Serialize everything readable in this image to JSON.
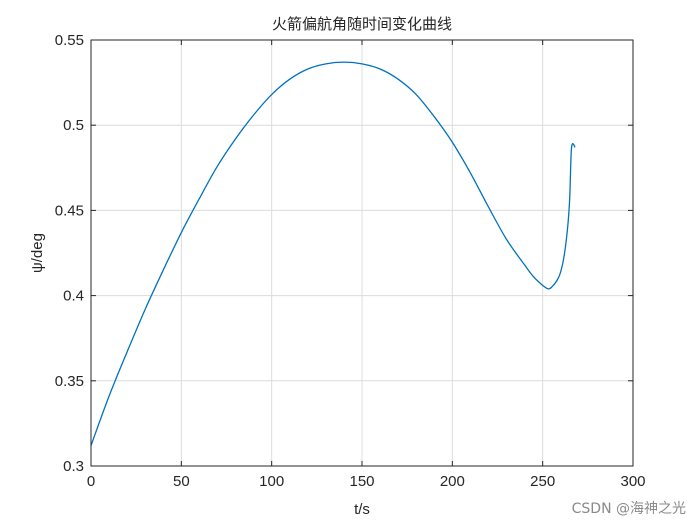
{
  "chart_data": {
    "type": "line",
    "title": "火箭偏航角随时间变化曲线",
    "xlabel": "t/s",
    "ylabel": "ψ/deg",
    "xlim": [
      0,
      300
    ],
    "ylim": [
      0.3,
      0.55
    ],
    "xticks": [
      0,
      50,
      100,
      150,
      200,
      250,
      300
    ],
    "yticks": [
      0.3,
      0.35,
      0.4,
      0.45,
      0.5,
      0.55
    ],
    "xtick_labels": [
      "0",
      "50",
      "100",
      "150",
      "200",
      "250",
      "300"
    ],
    "ytick_labels": [
      "0.3",
      "0.35",
      "0.4",
      "0.45",
      "0.5",
      "0.55"
    ],
    "grid": true,
    "series": [
      {
        "color": "#0072bd",
        "x": [
          0,
          10,
          20,
          30,
          40,
          50,
          60,
          70,
          80,
          90,
          100,
          110,
          120,
          130,
          140,
          150,
          160,
          170,
          180,
          190,
          200,
          210,
          220,
          230,
          240,
          245,
          250,
          253,
          255,
          258,
          260,
          262,
          264,
          265,
          266,
          268
        ],
        "y": [
          0.312,
          0.341,
          0.367,
          0.392,
          0.415,
          0.437,
          0.457,
          0.476,
          0.492,
          0.506,
          0.518,
          0.527,
          0.533,
          0.536,
          0.537,
          0.536,
          0.533,
          0.527,
          0.518,
          0.505,
          0.49,
          0.472,
          0.452,
          0.433,
          0.418,
          0.411,
          0.406,
          0.404,
          0.405,
          0.409,
          0.414,
          0.424,
          0.442,
          0.458,
          0.487,
          0.487
        ]
      }
    ]
  },
  "watermark": "CSDN @海神之光"
}
